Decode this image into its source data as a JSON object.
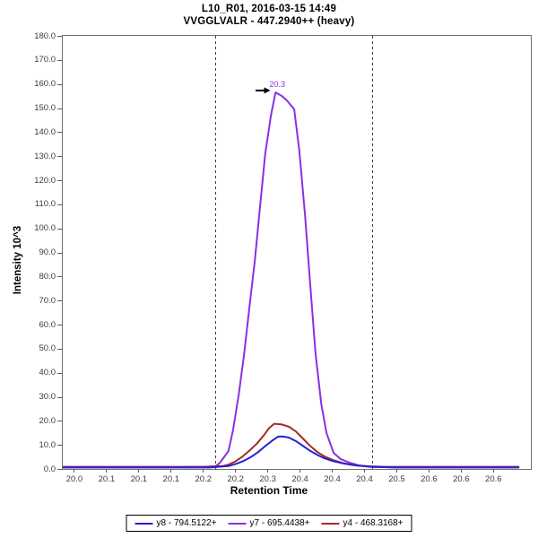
{
  "title": {
    "line1": "L10_R01, 2016-03-15 14:49",
    "line2": "VVGGLVALR - 447.2940++ (heavy)"
  },
  "chart_data": {
    "type": "line",
    "title": "L10_R01, 2016-03-15 14:49 / VVGGLVALR - 447.2940++ (heavy)",
    "xlabel": "Retention Time",
    "ylabel": "Intensity 10^3",
    "xlim": [
      19.982,
      20.708
    ],
    "ylim": [
      0,
      180
    ],
    "grid": false,
    "legend_position": "bottom",
    "x_ticks": {
      "values": [
        20.0,
        20.05,
        20.1,
        20.15,
        20.2,
        20.25,
        20.3,
        20.35,
        20.4,
        20.45,
        20.5,
        20.55,
        20.6,
        20.65
      ],
      "labels": [
        "20.0",
        "20.1",
        "20.1",
        "20.1",
        "20.2",
        "20.2",
        "20.3",
        "20.4",
        "20.4",
        "20.4",
        "20.5",
        "20.6",
        "20.6",
        "20.6"
      ]
    },
    "y_ticks": {
      "values": [
        0,
        10,
        20,
        30,
        40,
        50,
        60,
        70,
        80,
        90,
        100,
        110,
        120,
        130,
        140,
        150,
        160,
        170,
        180
      ],
      "labels": [
        "0.0",
        "10.0",
        "20.0",
        "30.0",
        "40.0",
        "50.0",
        "60.0",
        "70.0",
        "80.0",
        "90.0",
        "100.0",
        "110.0",
        "120.0",
        "130.0",
        "140.0",
        "150.0",
        "160.0",
        "170.0",
        "180.0"
      ]
    },
    "series": [
      {
        "id": "y8",
        "name": "y8 - 794.5122+",
        "color": "#2222DD",
        "z": 3,
        "points": [
          [
            19.982,
            0.6
          ],
          [
            20.21,
            0.6
          ],
          [
            20.239,
            1.2
          ],
          [
            20.252,
            2.2
          ],
          [
            20.263,
            3.4
          ],
          [
            20.274,
            5.0
          ],
          [
            20.285,
            7.0
          ],
          [
            20.296,
            9.5
          ],
          [
            20.308,
            12.0
          ],
          [
            20.316,
            13.4
          ],
          [
            20.324,
            13.5
          ],
          [
            20.333,
            13.0
          ],
          [
            20.344,
            11.5
          ],
          [
            20.355,
            9.5
          ],
          [
            20.366,
            7.5
          ],
          [
            20.377,
            5.8
          ],
          [
            20.388,
            4.4
          ],
          [
            20.402,
            3.2
          ],
          [
            20.419,
            2.2
          ],
          [
            20.438,
            1.4
          ],
          [
            20.462,
            0.9
          ],
          [
            20.497,
            0.6
          ],
          [
            20.689,
            0.6
          ]
        ]
      },
      {
        "id": "y7",
        "name": "y7 - 695.4438+",
        "color": "#8B2FE2",
        "z": 1,
        "points": [
          [
            19.982,
            0.7
          ],
          [
            20.15,
            0.7
          ],
          [
            20.205,
            0.9
          ],
          [
            20.219,
            1.1
          ],
          [
            20.226,
            2.6
          ],
          [
            20.233,
            5.2
          ],
          [
            20.239,
            7.5
          ],
          [
            20.246,
            16
          ],
          [
            20.255,
            31
          ],
          [
            20.263,
            47
          ],
          [
            20.271,
            66
          ],
          [
            20.28,
            87
          ],
          [
            20.288,
            109
          ],
          [
            20.296,
            131
          ],
          [
            20.305,
            147
          ],
          [
            20.312,
            156.5
          ],
          [
            20.322,
            155
          ],
          [
            20.33,
            153
          ],
          [
            20.341,
            149.5
          ],
          [
            20.349,
            132
          ],
          [
            20.358,
            105
          ],
          [
            20.366,
            76
          ],
          [
            20.374,
            48
          ],
          [
            20.383,
            27
          ],
          [
            20.391,
            15
          ],
          [
            20.402,
            6.7
          ],
          [
            20.413,
            4.1
          ],
          [
            20.427,
            2.6
          ],
          [
            20.441,
            1.5
          ],
          [
            20.462,
            0.8
          ],
          [
            20.5,
            0.7
          ],
          [
            20.689,
            0.7
          ]
        ]
      },
      {
        "id": "y4",
        "name": "y4 - 468.3168+",
        "color": "#A52A2A",
        "z": 2,
        "points": [
          [
            19.982,
            0.9
          ],
          [
            20.2,
            0.9
          ],
          [
            20.23,
            1.2
          ],
          [
            20.239,
            1.8
          ],
          [
            20.249,
            3.0
          ],
          [
            20.26,
            5.0
          ],
          [
            20.271,
            7.5
          ],
          [
            20.283,
            10.5
          ],
          [
            20.294,
            14.0
          ],
          [
            20.302,
            17.0
          ],
          [
            20.31,
            18.8
          ],
          [
            20.322,
            18.5
          ],
          [
            20.333,
            17.5
          ],
          [
            20.344,
            15.5
          ],
          [
            20.355,
            12.5
          ],
          [
            20.366,
            9.5
          ],
          [
            20.377,
            7.0
          ],
          [
            20.388,
            5.2
          ],
          [
            20.402,
            3.6
          ],
          [
            20.416,
            2.5
          ],
          [
            20.434,
            1.6
          ],
          [
            20.455,
            1.1
          ],
          [
            20.483,
            0.9
          ],
          [
            20.689,
            0.9
          ]
        ]
      }
    ],
    "peak_boundaries": {
      "values": [
        20.219,
        20.462
      ],
      "style": "dashed"
    },
    "annotation": {
      "text": "20.3",
      "rt": 20.312,
      "intensity": 157,
      "color": "#8B2FE2",
      "arrow": {
        "tail_rt": 20.281,
        "tip_rt": 20.304,
        "intensity": 157.3
      }
    }
  },
  "colors": {
    "frame": "#6f6f6f",
    "tick": "#5a5a5a",
    "tick_text": "#3c3c3c",
    "boundary": "#3f3f3f"
  }
}
